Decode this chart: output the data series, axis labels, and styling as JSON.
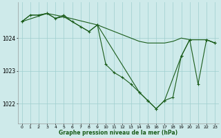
{
  "background_color": "#ceeaea",
  "plot_bg_color": "#ceeaea",
  "grid_color": "#9ecece",
  "line_color": "#1a5c1a",
  "xlabel": "Graphe pression niveau de la mer (hPa)",
  "xlim": [
    -0.5,
    23.5
  ],
  "ylim": [
    1021.4,
    1025.1
  ],
  "yticks": [
    1022,
    1023,
    1024
  ],
  "xticks": [
    0,
    1,
    2,
    3,
    4,
    5,
    6,
    7,
    8,
    9,
    10,
    11,
    12,
    13,
    14,
    15,
    16,
    17,
    18,
    19,
    20,
    21,
    22,
    23
  ],
  "series1": [
    [
      0,
      1024.5
    ],
    [
      1,
      1024.7
    ],
    [
      2,
      1024.7
    ],
    [
      3,
      1024.75
    ],
    [
      4,
      1024.6
    ],
    [
      5,
      1024.7
    ],
    [
      6,
      1024.5
    ],
    [
      7,
      1024.35
    ],
    [
      8,
      1024.2
    ],
    [
      9,
      1024.4
    ],
    [
      10,
      1023.2
    ],
    [
      11,
      1022.95
    ],
    [
      12,
      1022.8
    ],
    [
      13,
      1022.6
    ],
    [
      14,
      1022.35
    ],
    [
      15,
      1022.1
    ],
    [
      16,
      1021.85
    ],
    [
      17,
      1022.1
    ],
    [
      18,
      1022.2
    ],
    [
      19,
      1023.45
    ],
    [
      20,
      1023.95
    ],
    [
      21,
      1022.6
    ],
    [
      22,
      1023.95
    ],
    [
      23,
      1023.85
    ]
  ],
  "series2": [
    [
      0,
      1024.5
    ],
    [
      1,
      1024.7
    ],
    [
      2,
      1024.7
    ],
    [
      3,
      1024.75
    ],
    [
      4,
      1024.6
    ],
    [
      5,
      1024.65
    ],
    [
      6,
      1024.5
    ],
    [
      7,
      1024.35
    ],
    [
      8,
      1024.2
    ],
    [
      9,
      1024.4
    ],
    [
      10,
      1024.3
    ],
    [
      11,
      1024.2
    ],
    [
      12,
      1024.1
    ],
    [
      13,
      1024.0
    ],
    [
      14,
      1023.9
    ],
    [
      15,
      1023.85
    ],
    [
      16,
      1023.85
    ],
    [
      17,
      1023.85
    ],
    [
      18,
      1023.9
    ],
    [
      19,
      1024.0
    ],
    [
      20,
      1023.95
    ],
    [
      21,
      1023.95
    ],
    [
      22,
      1023.95
    ],
    [
      23,
      1023.85
    ]
  ],
  "series3": [
    [
      0,
      1024.5
    ],
    [
      3,
      1024.75
    ],
    [
      5,
      1024.65
    ],
    [
      9,
      1024.4
    ],
    [
      14,
      1022.35
    ],
    [
      15,
      1022.1
    ],
    [
      16,
      1021.85
    ],
    [
      17,
      1022.1
    ],
    [
      19,
      1023.45
    ],
    [
      20,
      1023.95
    ],
    [
      22,
      1023.95
    ],
    [
      23,
      1023.85
    ]
  ]
}
